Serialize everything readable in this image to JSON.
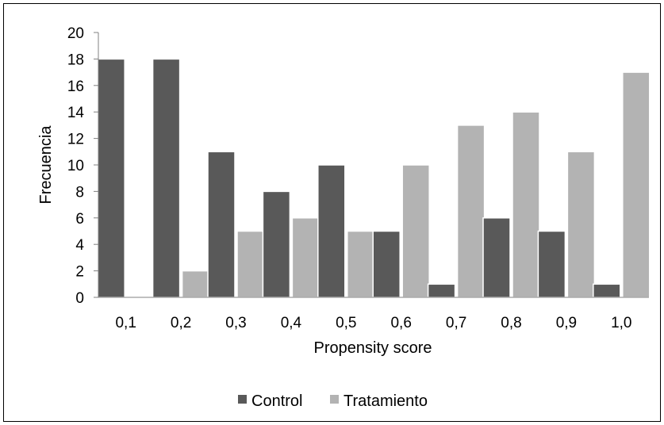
{
  "chart_data": {
    "type": "bar",
    "categories": [
      "0,1",
      "0,2",
      "0,3",
      "0,4",
      "0,5",
      "0,6",
      "0,7",
      "0,8",
      "0,9",
      "1,0"
    ],
    "series": [
      {
        "name": "Control",
        "color": "#595959",
        "values": [
          18,
          18,
          11,
          8,
          10,
          5,
          1,
          6,
          5,
          1
        ]
      },
      {
        "name": "Tratamiento",
        "color": "#b3b3b3",
        "values": [
          0,
          2,
          5,
          6,
          5,
          10,
          13,
          14,
          11,
          17
        ]
      }
    ],
    "xlabel": "Propensity score",
    "ylabel": "Frecuencia",
    "ylim": [
      0,
      20
    ],
    "yticks": [
      0,
      2,
      4,
      6,
      8,
      10,
      12,
      14,
      16,
      18,
      20
    ],
    "grid": false,
    "legend_position": "bottom"
  }
}
